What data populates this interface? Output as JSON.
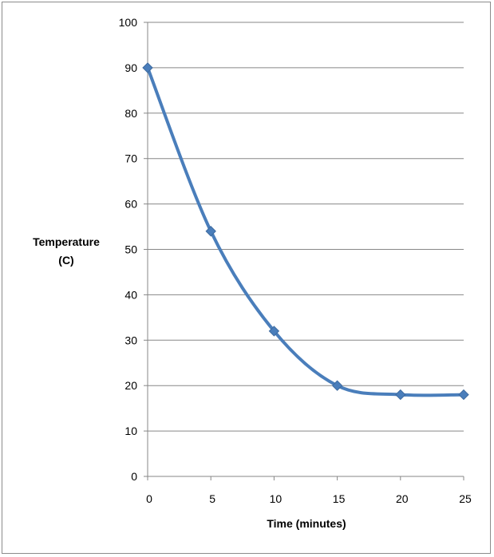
{
  "chart_data": {
    "type": "line",
    "title": "",
    "xlabel": "Time (minutes)",
    "ylabel_lines": [
      "Temperature",
      "(C)"
    ],
    "x": [
      0,
      5,
      10,
      15,
      20,
      25
    ],
    "series": [
      {
        "values": [
          90,
          54,
          32,
          20,
          18,
          18
        ],
        "color": "#4a7ebb",
        "marker": "diamond",
        "smooth": true
      }
    ],
    "xlim": [
      0,
      25
    ],
    "ylim": [
      0,
      100
    ],
    "xticks": [
      0,
      5,
      10,
      15,
      20,
      25
    ],
    "yticks": [
      0,
      10,
      20,
      30,
      40,
      50,
      60,
      70,
      80,
      90,
      100
    ],
    "grid": "horizontal",
    "legend": "none"
  }
}
